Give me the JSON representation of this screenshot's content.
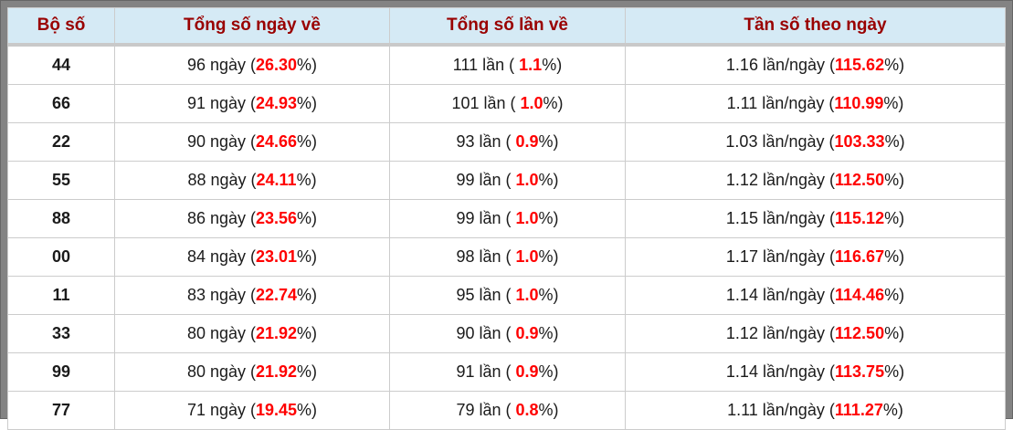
{
  "colors": {
    "frame": "#838383",
    "header_bg": "#d5eaf5",
    "header_text": "#990000",
    "highlight_red": "#ff0000",
    "cell_border": "#cccccc"
  },
  "table": {
    "headers": [
      "Bộ số",
      "Tổng số ngày về",
      "Tổng số lần về",
      "Tần số theo ngày"
    ],
    "rows": [
      {
        "pair": "44",
        "days_pre": "96 ngày (",
        "days_red": "26.30",
        "days_post": "%)",
        "times_pre": "111 lần ( ",
        "times_red": "1.1",
        "times_post": "%)",
        "freq_pre": "1.16 lần/ngày (",
        "freq_red": "115.62",
        "freq_post": "%)"
      },
      {
        "pair": "66",
        "days_pre": "91 ngày (",
        "days_red": "24.93",
        "days_post": "%)",
        "times_pre": "101 lần ( ",
        "times_red": "1.0",
        "times_post": "%)",
        "freq_pre": "1.11 lần/ngày (",
        "freq_red": "110.99",
        "freq_post": "%)"
      },
      {
        "pair": "22",
        "days_pre": "90 ngày (",
        "days_red": "24.66",
        "days_post": "%)",
        "times_pre": "93 lần ( ",
        "times_red": "0.9",
        "times_post": "%)",
        "freq_pre": "1.03 lần/ngày (",
        "freq_red": "103.33",
        "freq_post": "%)"
      },
      {
        "pair": "55",
        "days_pre": "88 ngày (",
        "days_red": "24.11",
        "days_post": "%)",
        "times_pre": "99 lần ( ",
        "times_red": "1.0",
        "times_post": "%)",
        "freq_pre": "1.12 lần/ngày (",
        "freq_red": "112.50",
        "freq_post": "%)"
      },
      {
        "pair": "88",
        "days_pre": "86 ngày (",
        "days_red": "23.56",
        "days_post": "%)",
        "times_pre": "99 lần ( ",
        "times_red": "1.0",
        "times_post": "%)",
        "freq_pre": "1.15 lần/ngày (",
        "freq_red": "115.12",
        "freq_post": "%)"
      },
      {
        "pair": "00",
        "days_pre": "84 ngày (",
        "days_red": "23.01",
        "days_post": "%)",
        "times_pre": "98 lần ( ",
        "times_red": "1.0",
        "times_post": "%)",
        "freq_pre": "1.17 lần/ngày (",
        "freq_red": "116.67",
        "freq_post": "%)"
      },
      {
        "pair": "11",
        "days_pre": "83 ngày (",
        "days_red": "22.74",
        "days_post": "%)",
        "times_pre": "95 lần ( ",
        "times_red": "1.0",
        "times_post": "%)",
        "freq_pre": "1.14 lần/ngày (",
        "freq_red": "114.46",
        "freq_post": "%)"
      },
      {
        "pair": "33",
        "days_pre": "80 ngày (",
        "days_red": "21.92",
        "days_post": "%)",
        "times_pre": "90 lần ( ",
        "times_red": "0.9",
        "times_post": "%)",
        "freq_pre": "1.12 lần/ngày (",
        "freq_red": "112.50",
        "freq_post": "%)"
      },
      {
        "pair": "99",
        "days_pre": "80 ngày (",
        "days_red": "21.92",
        "days_post": "%)",
        "times_pre": "91 lần ( ",
        "times_red": "0.9",
        "times_post": "%)",
        "freq_pre": "1.14 lần/ngày (",
        "freq_red": "113.75",
        "freq_post": "%)"
      },
      {
        "pair": "77",
        "days_pre": "71 ngày (",
        "days_red": "19.45",
        "days_post": "%)",
        "times_pre": "79 lần ( ",
        "times_red": "0.8",
        "times_post": "%)",
        "freq_pre": "1.11 lần/ngày (",
        "freq_red": "111.27",
        "freq_post": "%)"
      }
    ]
  }
}
